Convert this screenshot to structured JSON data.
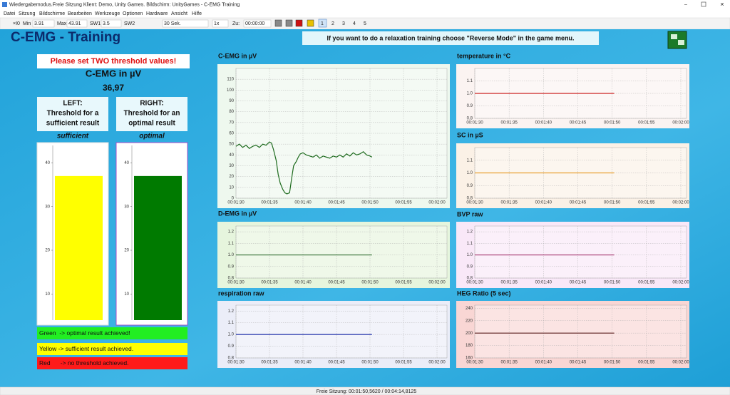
{
  "window": {
    "title": "Wiedergabemodus.Freie Sitzung  Klient: Demo, Unity Games. Bildschirm: UnityGames - C-EMG Training"
  },
  "menu": [
    "Datei",
    "Sitzung",
    "Bildschirme",
    "Bearbeiten",
    "Werkzeuge",
    "Optionen",
    "Hardware",
    "Ansicht",
    "Hilfe"
  ],
  "toolbar": {
    "reset": "×I0",
    "min_label": "Min",
    "min": "3.91",
    "max_label": "Max",
    "max": "43.91",
    "sw1_label": "SW1",
    "sw1": "3.5",
    "sw2_label": "SW2",
    "window": "30 Sek.",
    "speed": "1x",
    "to_label": "Zu:",
    "to": "00:00:00",
    "pages": [
      "1",
      "2",
      "3",
      "4",
      "5"
    ]
  },
  "header": {
    "title": "C-EMG - Training",
    "banner": "If you want to do a relaxation training choose \"Reverse Mode\" in the game menu."
  },
  "threshold_panel": {
    "warning": "Please set TWO threshold values!",
    "signal": "C-EMG in µV",
    "current_value": "36,97",
    "left": {
      "lines": [
        "LEFT:",
        "Threshold for a",
        "sufficient result"
      ],
      "level": "sufficient"
    },
    "right": {
      "lines": [
        "RIGHT:",
        "Threshold for an",
        "optimal result"
      ],
      "level": "optimal"
    }
  },
  "legend": [
    {
      "text": "Green  -> optimal result achieved!",
      "color": "#22ee22"
    },
    {
      "text": "Yellow -> sufficient result achieved.",
      "color": "#ffff00"
    },
    {
      "text": "Red      -> no threshold achieved.",
      "color": "#ff1a1a"
    }
  ],
  "chart_data": [
    {
      "type": "bar",
      "values": [
        37
      ],
      "color": "#ffff00",
      "ylim": [
        4,
        44
      ],
      "yticks": [
        10,
        20,
        30,
        40
      ]
    },
    {
      "type": "bar",
      "values": [
        37
      ],
      "color": "#007a00",
      "ylim": [
        4,
        44
      ],
      "yticks": [
        10,
        20,
        30,
        40
      ]
    },
    {
      "type": "line",
      "title": "C-EMG in µV",
      "background": "#eef8ee",
      "x": [
        90,
        90.5,
        91,
        91.5,
        92,
        92.5,
        93,
        93.5,
        94,
        94.5,
        95,
        95.3,
        95.6,
        96,
        96.3,
        96.6,
        97,
        97.3,
        97.6,
        98,
        98.3,
        98.6,
        99,
        99.3,
        99.6,
        100,
        100.5,
        101,
        101.5,
        102,
        102.5,
        103,
        103.5,
        104,
        104.5,
        105,
        105.5,
        106,
        106.5,
        107,
        107.5,
        108,
        108.5,
        109,
        109.5,
        110,
        110.3
      ],
      "series": [
        {
          "color": "#1e6b1e",
          "values": [
            48,
            50,
            47,
            49,
            46,
            48,
            49,
            47,
            50,
            49,
            52,
            51,
            45,
            35,
            22,
            14,
            8,
            5,
            4,
            5,
            18,
            30,
            34,
            38,
            41,
            42,
            40,
            39,
            38,
            40,
            37,
            39,
            38,
            37,
            39,
            38,
            40,
            38,
            41,
            39,
            42,
            40,
            41,
            43,
            40,
            39,
            38
          ]
        }
      ],
      "xlim": [
        90,
        120
      ],
      "xticks": [
        {
          "value": 90,
          "label": "00:01:30"
        },
        {
          "value": 95,
          "label": "00:01:35"
        },
        {
          "value": 100,
          "label": "00:01:40"
        },
        {
          "value": 105,
          "label": "00:01:45"
        },
        {
          "value": 110,
          "label": "00:01:50"
        },
        {
          "value": 115,
          "label": "00:01:55"
        },
        {
          "value": 120,
          "label": "00:02:00"
        }
      ],
      "ylim": [
        0,
        120
      ],
      "yticks": [
        0,
        10,
        20,
        30,
        40,
        50,
        60,
        70,
        80,
        90,
        100,
        110
      ],
      "grid": true
    },
    {
      "type": "line",
      "title": "temperature in °C",
      "background": "#fbf3f1",
      "x": [
        90,
        110.3
      ],
      "series": [
        {
          "color": "#cc2222",
          "values": [
            1,
            1
          ]
        }
      ],
      "xlim": [
        90,
        120
      ],
      "xticks": [
        {
          "value": 90,
          "label": "00:01:30"
        },
        {
          "value": 95,
          "label": "00:01:35"
        },
        {
          "value": 100,
          "label": "00:01:40"
        },
        {
          "value": 105,
          "label": "00:01:45"
        },
        {
          "value": 110,
          "label": "00:01:50"
        },
        {
          "value": 115,
          "label": "00:01:55"
        },
        {
          "value": 120,
          "label": "00:02:00"
        }
      ],
      "ylim": [
        0.8,
        1.2
      ],
      "yticks": [
        0.8,
        0.9,
        {
          "value": 1,
          "label": "1.0"
        },
        1.1
      ],
      "grid": true
    },
    {
      "type": "line",
      "title": "SC in µS",
      "background": "#fbf1e6",
      "x": [
        90,
        110.3
      ],
      "series": [
        {
          "color": "#e8a030",
          "values": [
            1,
            1
          ]
        }
      ],
      "xlim": [
        90,
        120
      ],
      "xticks": [
        {
          "value": 90,
          "label": "00:01:30"
        },
        {
          "value": 95,
          "label": "00:01:35"
        },
        {
          "value": 100,
          "label": "00:01:40"
        },
        {
          "value": 105,
          "label": "00:01:45"
        },
        {
          "value": 110,
          "label": "00:01:50"
        },
        {
          "value": 115,
          "label": "00:01:55"
        },
        {
          "value": 120,
          "label": "00:02:00"
        }
      ],
      "ylim": [
        0.8,
        1.2
      ],
      "yticks": [
        0.8,
        0.9,
        {
          "value": 1,
          "label": "1.0"
        },
        1.1
      ],
      "grid": true
    },
    {
      "type": "line",
      "title": "D-EMG in µV",
      "background": "#e6f5dd",
      "x": [
        90,
        110.3
      ],
      "series": [
        {
          "color": "#2e6b2e",
          "values": [
            1,
            1
          ]
        }
      ],
      "xlim": [
        90,
        120
      ],
      "xticks": [
        {
          "value": 90,
          "label": "00:01:30"
        },
        {
          "value": 95,
          "label": "00:01:35"
        },
        {
          "value": 100,
          "label": "00:01:40"
        },
        {
          "value": 105,
          "label": "00:01:45"
        },
        {
          "value": 110,
          "label": "00:01:50"
        },
        {
          "value": 115,
          "label": "00:01:55"
        },
        {
          "value": 120,
          "label": "00:02:00"
        }
      ],
      "ylim": [
        0.8,
        1.25
      ],
      "yticks": [
        0.8,
        0.9,
        {
          "value": 1,
          "label": "1.0"
        },
        1.1,
        1.2
      ],
      "grid": true
    },
    {
      "type": "line",
      "title": "BVP raw",
      "background": "#f9e8f8",
      "x": [
        90,
        110.3
      ],
      "series": [
        {
          "color": "#a0306a",
          "values": [
            1,
            1
          ]
        }
      ],
      "xlim": [
        90,
        120
      ],
      "xticks": [
        {
          "value": 90,
          "label": "00:01:30"
        },
        {
          "value": 95,
          "label": "00:01:35"
        },
        {
          "value": 100,
          "label": "00:01:40"
        },
        {
          "value": 105,
          "label": "00:01:45"
        },
        {
          "value": 110,
          "label": "00:01:50"
        },
        {
          "value": 115,
          "label": "00:01:55"
        },
        {
          "value": 120,
          "label": "00:02:00"
        }
      ],
      "ylim": [
        0.8,
        1.25
      ],
      "yticks": [
        0.8,
        0.9,
        {
          "value": 1,
          "label": "1.0"
        },
        1.1,
        1.2
      ],
      "grid": true
    },
    {
      "type": "line",
      "title": "respiration raw",
      "background": "#ebedf8",
      "x": [
        90,
        110.3
      ],
      "series": [
        {
          "color": "#2233aa",
          "values": [
            1,
            1
          ]
        }
      ],
      "xlim": [
        90,
        120
      ],
      "xticks": [
        {
          "value": 90,
          "label": "00:01:30"
        },
        {
          "value": 95,
          "label": "00:01:35"
        },
        {
          "value": 100,
          "label": "00:01:40"
        },
        {
          "value": 105,
          "label": "00:01:45"
        },
        {
          "value": 110,
          "label": "00:01:50"
        },
        {
          "value": 115,
          "label": "00:01:55"
        },
        {
          "value": 120,
          "label": "00:02:00"
        }
      ],
      "ylim": [
        0.8,
        1.25
      ],
      "yticks": [
        0.8,
        0.9,
        {
          "value": 1,
          "label": "1.0"
        },
        1.1,
        1.2
      ],
      "grid": true
    },
    {
      "type": "line",
      "title": "HEG Ratio (5 sec)",
      "background": "#f9d6d4",
      "x": [
        90,
        110.3
      ],
      "series": [
        {
          "color": "#5a1e1e",
          "values": [
            200,
            200
          ]
        }
      ],
      "xlim": [
        90,
        120
      ],
      "xticks": [
        {
          "value": 90,
          "label": "00:01:30"
        },
        {
          "value": 95,
          "label": "00:01:35"
        },
        {
          "value": 100,
          "label": "00:01:40"
        },
        {
          "value": 105,
          "label": "00:01:45"
        },
        {
          "value": 110,
          "label": "00:01:50"
        },
        {
          "value": 115,
          "label": "00:01:55"
        },
        {
          "value": 120,
          "label": "00:02:00"
        }
      ],
      "ylim": [
        160,
        245
      ],
      "yticks": [
        160,
        180,
        200,
        220,
        240
      ],
      "grid": true
    }
  ],
  "status": "Freie Sitzung: 00:01:50,5620 / 00:04:14,8125"
}
